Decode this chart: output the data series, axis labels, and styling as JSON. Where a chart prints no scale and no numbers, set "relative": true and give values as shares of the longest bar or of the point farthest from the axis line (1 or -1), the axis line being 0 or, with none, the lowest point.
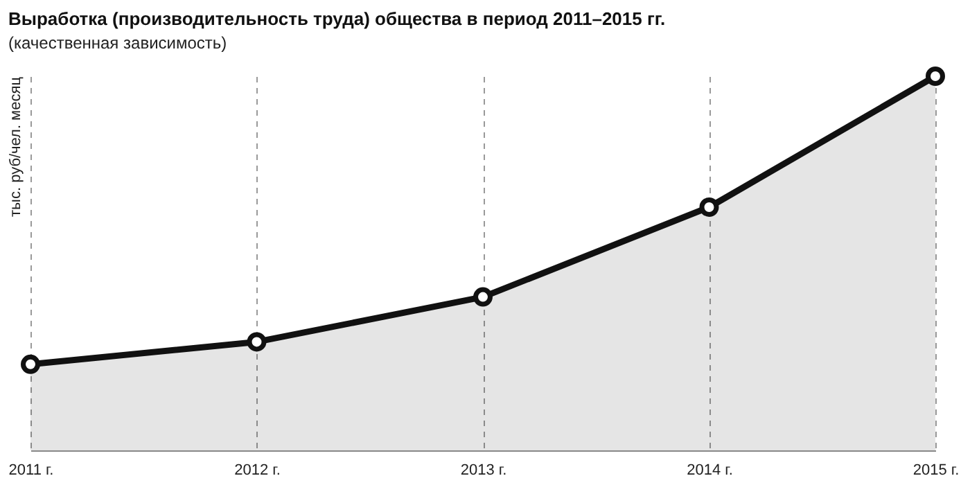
{
  "chart_data": {
    "type": "area",
    "title": "Выработка (производительность труда) общества в период 2011–2015 гг.",
    "subtitle": "(качественная зависимость)",
    "ylabel": "тыс. руб/чел. месяц",
    "categories": [
      "2011 г.",
      "2012 г.",
      "2013 г.",
      "2014 г.",
      "2015 г."
    ],
    "series": [
      {
        "color": "#111111",
        "values": [
          0.23,
          0.29,
          0.41,
          0.65,
          1
        ]
      }
    ],
    "relative": true,
    "grid": "x",
    "marker": "circle",
    "line_style": "solid"
  }
}
